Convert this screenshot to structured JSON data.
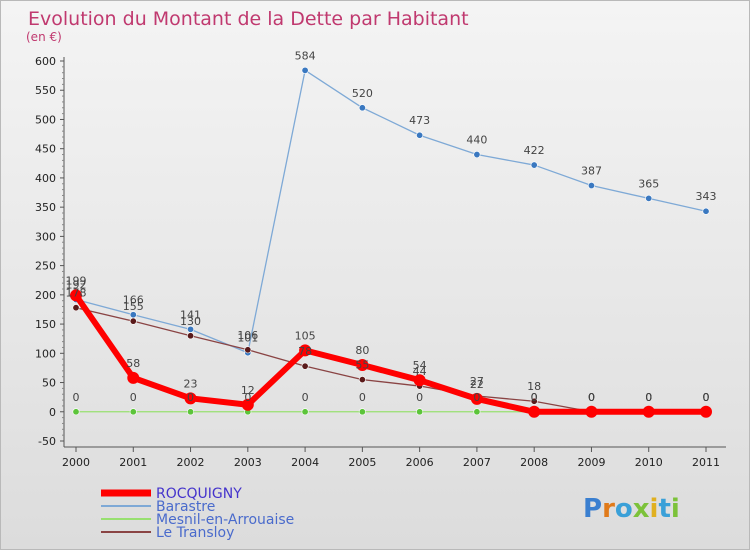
{
  "chart_data": {
    "type": "line",
    "title": "Evolution du Montant de la Dette par Habitant",
    "subtitle": "(en €)",
    "x": [
      "2000",
      "2001",
      "2002",
      "2003",
      "2004",
      "2005",
      "2006",
      "2007",
      "2008",
      "2009",
      "2010",
      "2011"
    ],
    "ylim": [
      -50,
      600
    ],
    "yticks": [
      -50,
      0,
      50,
      100,
      150,
      200,
      250,
      300,
      350,
      400,
      450,
      500,
      550,
      600
    ],
    "grid": false,
    "legend_position": "bottom-left",
    "series": [
      {
        "name": "Barastre",
        "color": "#7ea9d6",
        "marker": "#3a78c0",
        "values": [
          192,
          166,
          141,
          101,
          584,
          520,
          473,
          440,
          422,
          387,
          365,
          343
        ]
      },
      {
        "name": "Mesnil-en-Arrouaise",
        "color": "#98e070",
        "marker": "#5cc43a",
        "values": [
          0,
          0,
          0,
          0,
          0,
          0,
          0,
          0,
          0,
          0,
          0,
          0
        ]
      },
      {
        "name": "Le Transloy",
        "color": "#8a4444",
        "marker": "#5a1a1a",
        "values": [
          178,
          155,
          130,
          106,
          78,
          55,
          44,
          27,
          18,
          0,
          0,
          0
        ]
      },
      {
        "name": "ROCQUIGNY",
        "color": "#ff0000",
        "marker": "#ff0000",
        "values": [
          199,
          58,
          23,
          12,
          105,
          80,
          54,
          22,
          0,
          0,
          0,
          0
        ]
      }
    ],
    "legend_order": [
      "ROCQUIGNY",
      "Barastre",
      "Mesnil-en-Arrouaise",
      "Le Transloy"
    ]
  },
  "brand": "Proxiti"
}
